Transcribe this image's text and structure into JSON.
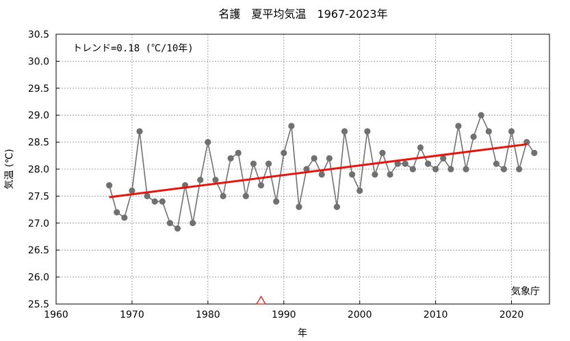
{
  "chart_data": {
    "type": "line",
    "title": "名護　夏平均気温　1967-2023年",
    "xlabel": "年",
    "ylabel": "気温 (℃)",
    "trend_label": "トレンド=0.18 (℃/10年)",
    "source_label": "気象庁",
    "xlim": [
      1960,
      2025
    ],
    "ylim": [
      25.5,
      30.5
    ],
    "x_ticks": [
      1960,
      1970,
      1980,
      1990,
      2000,
      2010,
      2020
    ],
    "y_ticks": [
      25.5,
      26.0,
      26.5,
      27.0,
      27.5,
      28.0,
      28.5,
      29.0,
      29.5,
      30.0,
      30.5
    ],
    "grid": true,
    "series": [
      {
        "color": "#707070",
        "points": [
          [
            1967,
            27.7
          ],
          [
            1968,
            27.2
          ],
          [
            1969,
            27.1
          ],
          [
            1970,
            27.6
          ],
          [
            1971,
            28.7
          ],
          [
            1972,
            27.5
          ],
          [
            1973,
            27.4
          ],
          [
            1974,
            27.4
          ],
          [
            1975,
            27.0
          ],
          [
            1976,
            26.9
          ],
          [
            1977,
            27.7
          ],
          [
            1978,
            27.0
          ],
          [
            1979,
            27.8
          ],
          [
            1980,
            28.5
          ],
          [
            1981,
            27.8
          ],
          [
            1982,
            27.5
          ],
          [
            1983,
            28.2
          ],
          [
            1984,
            28.3
          ],
          [
            1985,
            27.5
          ],
          [
            1986,
            28.1
          ],
          [
            1987,
            27.7
          ],
          [
            1988,
            28.1
          ],
          [
            1989,
            27.4
          ],
          [
            1990,
            28.3
          ],
          [
            1991,
            28.8
          ],
          [
            1992,
            27.3
          ],
          [
            1993,
            28.0
          ],
          [
            1994,
            28.2
          ],
          [
            1995,
            27.9
          ],
          [
            1996,
            28.2
          ],
          [
            1997,
            27.3
          ],
          [
            1998,
            28.7
          ],
          [
            1999,
            27.9
          ],
          [
            2000,
            27.6
          ],
          [
            2001,
            28.7
          ],
          [
            2002,
            27.9
          ],
          [
            2003,
            28.3
          ],
          [
            2004,
            27.9
          ],
          [
            2005,
            28.1
          ],
          [
            2006,
            28.1
          ],
          [
            2007,
            28.0
          ],
          [
            2008,
            28.4
          ],
          [
            2009,
            28.1
          ],
          [
            2010,
            28.0
          ],
          [
            2011,
            28.2
          ],
          [
            2012,
            28.0
          ],
          [
            2013,
            28.8
          ],
          [
            2014,
            28.0
          ],
          [
            2015,
            28.6
          ],
          [
            2016,
            29.0
          ],
          [
            2017,
            28.7
          ],
          [
            2018,
            28.1
          ],
          [
            2019,
            28.0
          ],
          [
            2020,
            28.7
          ],
          [
            2021,
            28.0
          ],
          [
            2022,
            28.5
          ],
          [
            2023,
            28.3
          ]
        ]
      }
    ],
    "trend_line": {
      "color": "#e8140c",
      "x": [
        1967,
        2022
      ],
      "y": [
        27.48,
        28.46
      ]
    },
    "markers": [
      {
        "x": 1987,
        "y": 25.5,
        "shape": "triangle",
        "color": "#e8140c"
      }
    ]
  }
}
